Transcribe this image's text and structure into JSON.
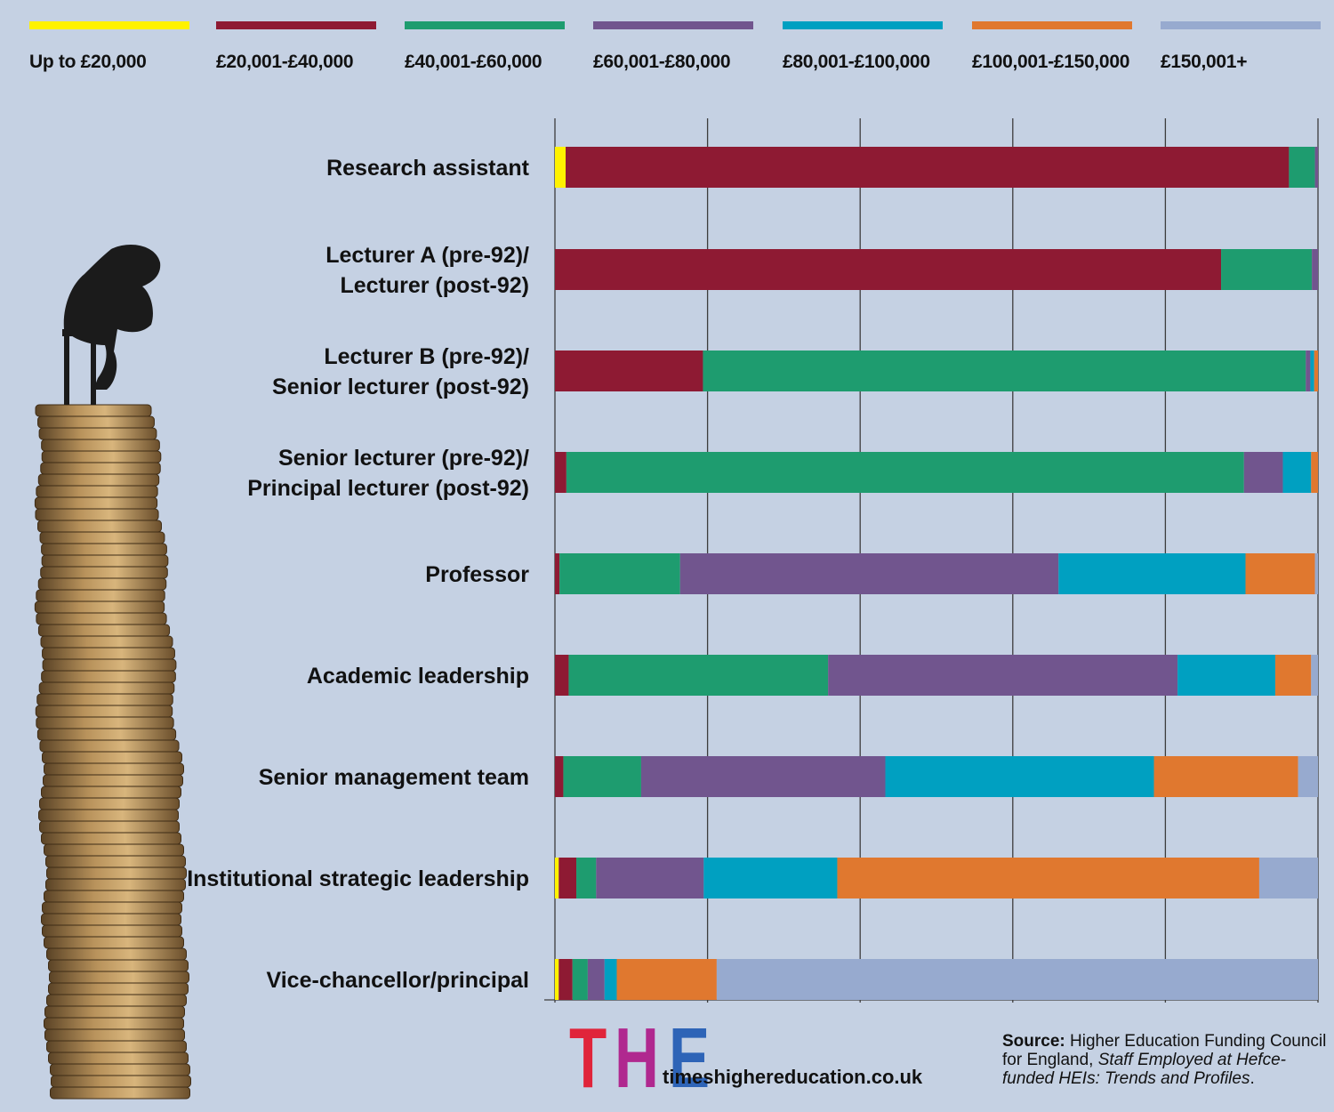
{
  "legend": [
    {
      "label": "Up to £20,000",
      "color": "#fff200"
    },
    {
      "label": "£20,001-£40,000",
      "color": "#8e1a33"
    },
    {
      "label": "£40,001-£60,000",
      "color": "#1e9c6f"
    },
    {
      "label": "£60,001-£80,000",
      "color": "#71558e"
    },
    {
      "label": "£80,001-£100,000",
      "color": "#00a0c1"
    },
    {
      "label": "£100,001-£150,000",
      "color": "#e0782f"
    },
    {
      "label": "£150,001+",
      "color": "#97aacf"
    }
  ],
  "chart_data": {
    "type": "bar",
    "orientation": "horizontal",
    "stacked": true,
    "percent": true,
    "xlim": [
      0,
      100
    ],
    "grid": true,
    "legend_position": "top",
    "categories": [
      [
        "Research assistant"
      ],
      [
        "Lecturer A (pre-92)/",
        "Lecturer (post-92)"
      ],
      [
        "Lecturer B (pre-92)/",
        "Senior lecturer (post-92)"
      ],
      [
        "Senior lecturer (pre-92)/",
        "Principal lecturer (post-92)"
      ],
      [
        "Professor"
      ],
      [
        "Academic leadership"
      ],
      [
        "Senior management team"
      ],
      [
        "Institutional strategic leadership"
      ],
      [
        "Vice-chancellor/principal"
      ]
    ],
    "series": [
      {
        "name": "Up to £20,000",
        "values": [
          1.4,
          0,
          0,
          0,
          0,
          0,
          0,
          0.5,
          0.5
        ]
      },
      {
        "name": "£20,001-£40,000",
        "values": [
          94.8,
          87.3,
          19.4,
          1.5,
          0.6,
          1.8,
          1.1,
          2.3,
          1.8
        ]
      },
      {
        "name": "£40,001-£60,000",
        "values": [
          3.4,
          11.9,
          79.0,
          88.8,
          15.8,
          34.0,
          10.2,
          2.6,
          2.0
        ]
      },
      {
        "name": "£60,001-£80,000",
        "values": [
          0.4,
          0.8,
          0.6,
          5.1,
          49.6,
          45.8,
          32.0,
          14.1,
          2.2
        ]
      },
      {
        "name": "£80,001-£100,000",
        "values": [
          0,
          0,
          0.5,
          3.7,
          24.5,
          12.8,
          35.2,
          17.5,
          1.6
        ]
      },
      {
        "name": "£100,001-£150,000",
        "values": [
          0,
          0,
          0.5,
          0.9,
          9.1,
          4.7,
          18.9,
          55.3,
          13.1
        ]
      },
      {
        "name": "£150,001+",
        "values": [
          0,
          0,
          0,
          0,
          0.4,
          0.9,
          2.6,
          7.7,
          78.8
        ]
      }
    ]
  },
  "brand": {
    "logo_letters": [
      {
        "char": "T",
        "color": "#e0243a"
      },
      {
        "char": "H",
        "color": "#b0288f"
      },
      {
        "char": "E",
        "color": "#2e64b7"
      }
    ],
    "url": "timeshighereducation.co.uk"
  },
  "source": {
    "label": "Source:",
    "text": "Higher Education Funding Council for England,",
    "publication": "Staff Employed at Hefce-funded HEIs: Trends and Profiles",
    "end": "."
  }
}
